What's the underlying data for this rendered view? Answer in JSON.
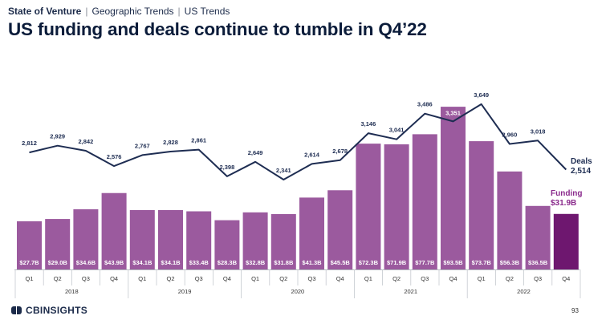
{
  "breadcrumb": {
    "section": "State of Venture",
    "items": [
      "Geographic Trends",
      "US Trends"
    ]
  },
  "title": "US funding and deals continue to tumble in Q4’22",
  "colors": {
    "bar": "#9b5a9e",
    "bar_highlight": "#6e176f",
    "line": "#1e2d52",
    "text": "#1c2b4a",
    "funding_label": "#8a2a8c"
  },
  "chart_data": {
    "type": "bar",
    "title": "US funding and deals continue to tumble in Q4’22",
    "categories": [
      "Q1",
      "Q2",
      "Q3",
      "Q4",
      "Q1",
      "Q2",
      "Q3",
      "Q4",
      "Q1",
      "Q2",
      "Q3",
      "Q4",
      "Q1",
      "Q2",
      "Q3",
      "Q4",
      "Q1",
      "Q2",
      "Q3",
      "Q4"
    ],
    "years": [
      {
        "label": "2018",
        "start": 0,
        "end": 3
      },
      {
        "label": "2019",
        "start": 4,
        "end": 7
      },
      {
        "label": "2020",
        "start": 8,
        "end": 11
      },
      {
        "label": "2021",
        "start": 12,
        "end": 15
      },
      {
        "label": "2022",
        "start": 16,
        "end": 19
      }
    ],
    "series": [
      {
        "name": "Funding",
        "type": "bar",
        "values": [
          27.7,
          29.0,
          34.6,
          43.9,
          34.1,
          34.1,
          33.4,
          28.3,
          32.8,
          31.8,
          41.3,
          45.5,
          72.3,
          71.9,
          77.7,
          93.5,
          73.7,
          56.3,
          36.5,
          31.9
        ],
        "labels": [
          "$27.7B",
          "$29.0B",
          "$34.6B",
          "$43.9B",
          "$34.1B",
          "$34.1B",
          "$33.4B",
          "$28.3B",
          "$32.8B",
          "$31.8B",
          "$41.3B",
          "$45.5B",
          "$72.3B",
          "$71.9B",
          "$77.7B",
          "$93.5B",
          "$73.7B",
          "$56.3B",
          "$36.5B",
          ""
        ],
        "ylim": [
          0,
          100
        ]
      },
      {
        "name": "Deals",
        "type": "line",
        "values": [
          2812,
          2929,
          2842,
          2576,
          2767,
          2828,
          2861,
          2398,
          2649,
          2341,
          2614,
          2678,
          3146,
          3041,
          3486,
          3351,
          3649,
          2960,
          3018,
          2514
        ],
        "labels": [
          "2,812",
          "2,929",
          "2,842",
          "2,576",
          "2,767",
          "2,828",
          "2,861",
          "2,398",
          "2,649",
          "2,341",
          "2,614",
          "2,678",
          "3,146",
          "3,041",
          "3,486",
          "3,351",
          "3,649",
          "2,960",
          "3,018",
          ""
        ],
        "ylim": [
          0,
          5000
        ]
      }
    ],
    "callouts": {
      "deals_title": "Deals",
      "deals_value": "2,514",
      "funding_title": "Funding",
      "funding_value": "$31.9B"
    },
    "xlabel": "",
    "ylabel": ""
  },
  "footer": {
    "brand": "CBINSIGHTS",
    "page": "93"
  }
}
